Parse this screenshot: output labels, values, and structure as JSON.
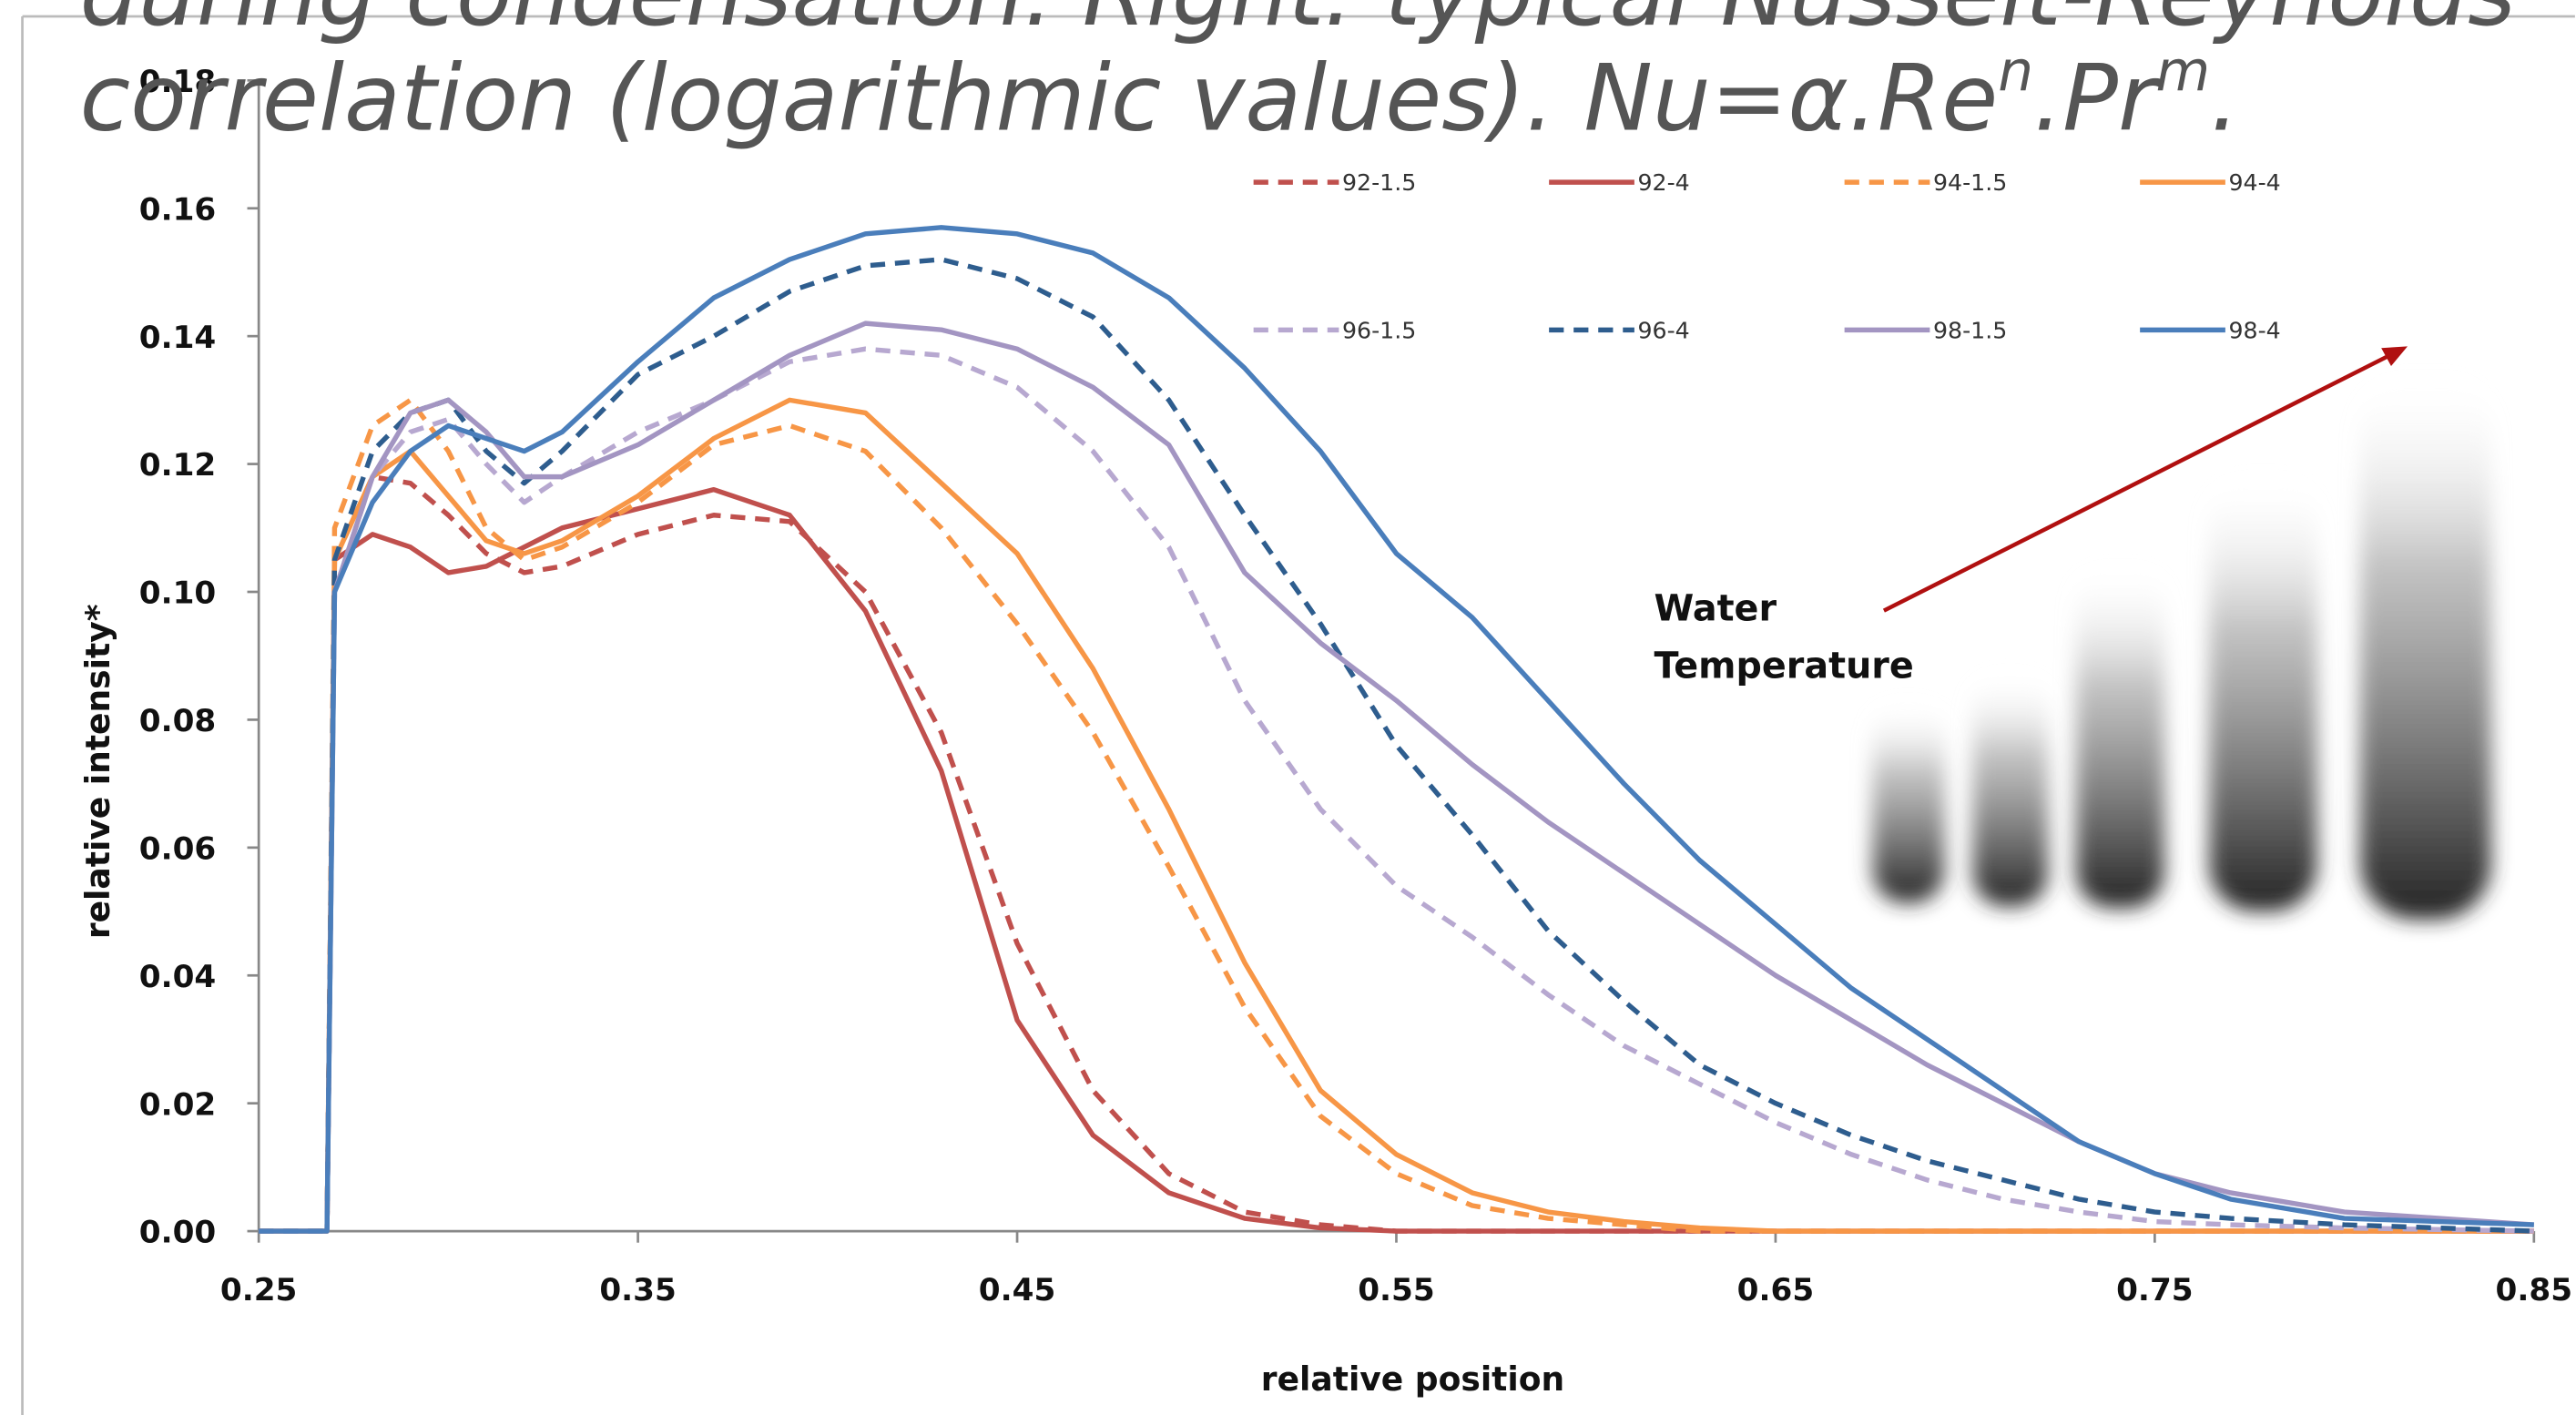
{
  "caption": {
    "line1": "during condensation. Right: typical Nusselt-Reynolds",
    "line2": [
      "correlation (logarithmic values). Nu=α.Re",
      "n",
      ".Pr",
      "m",
      "."
    ]
  },
  "chart_data": {
    "type": "line",
    "x_label": "relative position",
    "y_label": "relative intensity*",
    "xlim": [
      0.25,
      0.85
    ],
    "ylim": [
      0,
      0.18
    ],
    "xticks": [
      0.25,
      0.35,
      0.45,
      0.55,
      0.65,
      0.75,
      0.85
    ],
    "yticks": [
      {
        "value": 0,
        "label": "0.00"
      },
      0.02,
      0.04,
      0.06,
      0.08,
      {
        "value": 0.1,
        "label": "0.10"
      },
      0.12,
      0.14,
      0.16,
      0.18
    ],
    "annotation": [
      "Water",
      "Temperature"
    ],
    "x": [
      0.25,
      0.268,
      0.27,
      0.28,
      0.29,
      0.3,
      0.31,
      0.32,
      0.33,
      0.35,
      0.37,
      0.39,
      0.41,
      0.43,
      0.45,
      0.47,
      0.49,
      0.51,
      0.53,
      0.55,
      0.57,
      0.59,
      0.61,
      0.63,
      0.65,
      0.67,
      0.69,
      0.71,
      0.73,
      0.75,
      0.77,
      0.8,
      0.85
    ],
    "series": [
      {
        "name": "92-1.5",
        "color": "#c0504d",
        "dashed": true,
        "values": [
          0,
          0,
          0.105,
          0.118,
          0.117,
          0.112,
          0.106,
          0.103,
          0.104,
          0.109,
          0.112,
          0.111,
          0.1,
          0.078,
          0.045,
          0.022,
          0.009,
          0.003,
          0.001,
          0,
          0,
          0,
          0,
          0,
          0,
          0,
          0,
          0,
          0,
          0,
          0,
          0,
          0
        ]
      },
      {
        "name": "92-4",
        "color": "#c0504d",
        "dashed": false,
        "values": [
          0,
          0,
          0.105,
          0.109,
          0.107,
          0.103,
          0.104,
          0.107,
          0.11,
          0.113,
          0.116,
          0.112,
          0.097,
          0.072,
          0.033,
          0.015,
          0.006,
          0.002,
          0.0005,
          0,
          0,
          0,
          0,
          0,
          0,
          0,
          0,
          0,
          0,
          0,
          0,
          0,
          0
        ]
      },
      {
        "name": "94-1.5",
        "color": "#f79646",
        "dashed": true,
        "values": [
          0,
          0,
          0.11,
          0.126,
          0.13,
          0.122,
          0.11,
          0.105,
          0.107,
          0.114,
          0.123,
          0.126,
          0.122,
          0.11,
          0.095,
          0.078,
          0.057,
          0.035,
          0.018,
          0.009,
          0.004,
          0.002,
          0.001,
          0,
          0,
          0,
          0,
          0,
          0,
          0,
          0,
          0,
          0
        ]
      },
      {
        "name": "94-4",
        "color": "#f79646",
        "dashed": false,
        "values": [
          0,
          0,
          0.105,
          0.118,
          0.122,
          0.115,
          0.108,
          0.106,
          0.108,
          0.115,
          0.124,
          0.13,
          0.128,
          0.117,
          0.106,
          0.088,
          0.066,
          0.042,
          0.022,
          0.012,
          0.006,
          0.003,
          0.0015,
          0.0005,
          0,
          0,
          0,
          0,
          0,
          0,
          0,
          0,
          0
        ]
      },
      {
        "name": "96-1.5",
        "color": "#b7a8d0",
        "dashed": true,
        "values": [
          0,
          0,
          0.1,
          0.118,
          0.125,
          0.127,
          0.12,
          0.114,
          0.118,
          0.125,
          0.13,
          0.136,
          0.138,
          0.137,
          0.132,
          0.122,
          0.107,
          0.083,
          0.066,
          0.054,
          0.046,
          0.037,
          0.029,
          0.023,
          0.017,
          0.012,
          0.008,
          0.005,
          0.003,
          0.0015,
          0.001,
          0.0005,
          0
        ]
      },
      {
        "name": "96-4",
        "color": "#2e5d8e",
        "dashed": true,
        "values": [
          0,
          0,
          0.105,
          0.122,
          0.128,
          0.13,
          0.122,
          0.117,
          0.122,
          0.134,
          0.14,
          0.147,
          0.151,
          0.152,
          0.149,
          0.143,
          0.13,
          0.112,
          0.095,
          0.076,
          0.062,
          0.047,
          0.036,
          0.026,
          0.02,
          0.015,
          0.011,
          0.008,
          0.005,
          0.003,
          0.002,
          0.001,
          0
        ]
      },
      {
        "name": "98-1.5",
        "color": "#a395c2",
        "dashed": false,
        "values": [
          0,
          0,
          0.1,
          0.118,
          0.128,
          0.13,
          0.125,
          0.118,
          0.118,
          0.123,
          0.13,
          0.137,
          0.142,
          0.141,
          0.138,
          0.132,
          0.123,
          0.103,
          0.092,
          0.083,
          0.073,
          0.064,
          0.056,
          0.048,
          0.04,
          0.033,
          0.026,
          0.02,
          0.014,
          0.009,
          0.006,
          0.003,
          0.001
        ]
      },
      {
        "name": "98-4",
        "color": "#4a7ebb",
        "dashed": false,
        "values": [
          0,
          0,
          0.1,
          0.114,
          0.122,
          0.126,
          0.124,
          0.122,
          0.125,
          0.136,
          0.146,
          0.152,
          0.156,
          0.157,
          0.156,
          0.153,
          0.146,
          0.135,
          0.122,
          0.106,
          0.096,
          0.083,
          0.07,
          0.058,
          0.048,
          0.038,
          0.03,
          0.022,
          0.014,
          0.009,
          0.005,
          0.002,
          0.001
        ]
      }
    ]
  }
}
